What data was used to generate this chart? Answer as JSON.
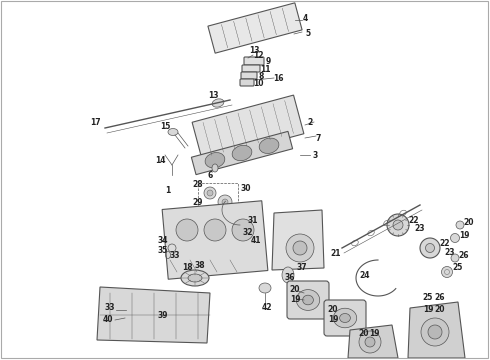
{
  "background_color": "#ffffff",
  "line_color": "#555555",
  "label_color": "#222222",
  "label_fontsize": 5.5,
  "fig_width": 4.9,
  "fig_height": 3.6,
  "dpi": 100
}
